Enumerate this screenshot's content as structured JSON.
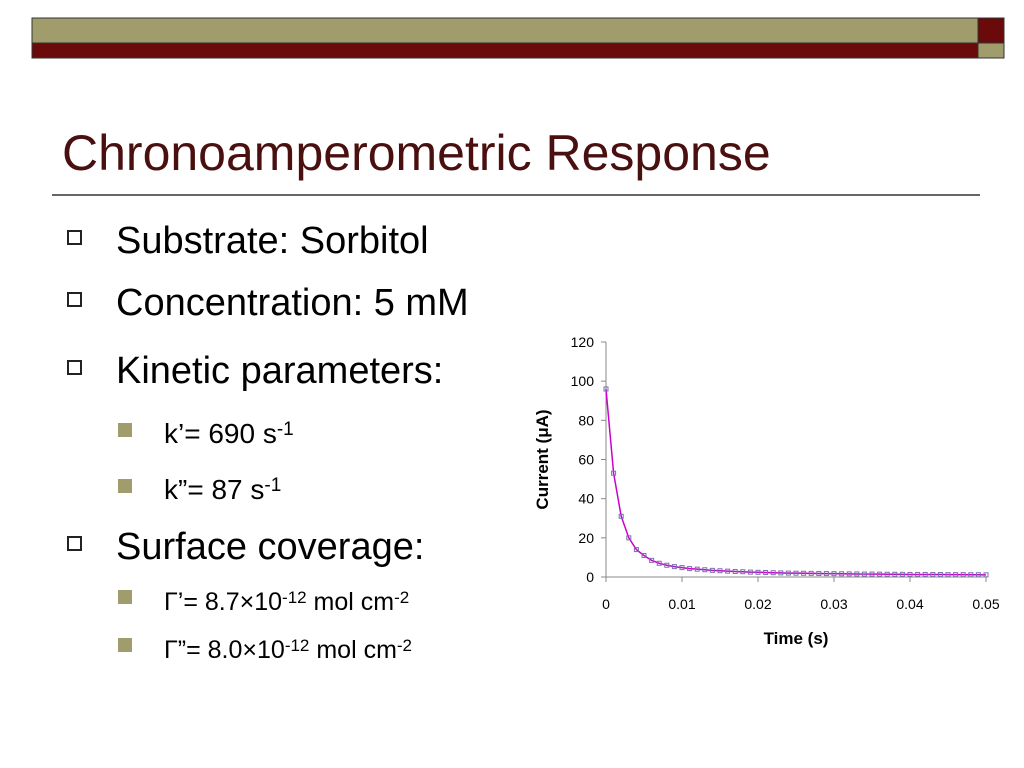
{
  "title": "Chronoamperometric Response",
  "bullets": [
    {
      "text": "Substrate: Sorbitol"
    },
    {
      "text": "Concentration: 5 mM"
    },
    {
      "text": "Kinetic parameters:",
      "sub": [
        [
          {
            "text": "k’= 690 s"
          },
          {
            "text": "-1",
            "sup": true
          }
        ],
        [
          {
            "text": "k”= 87 s"
          },
          {
            "text": "-1",
            "sup": true
          }
        ]
      ]
    },
    {
      "text": "Surface coverage:",
      "sub": [
        [
          {
            "text": "Γ’= 8.7×10"
          },
          {
            "text": "-12",
            "sup": true
          },
          {
            "text": " mol cm"
          },
          {
            "text": "-2",
            "sup": true
          }
        ],
        [
          {
            "text": "Γ”= 8.0×10"
          },
          {
            "text": "-12",
            "sup": true
          },
          {
            "text": " mol cm"
          },
          {
            "text": "-2",
            "sup": true
          }
        ]
      ]
    }
  ],
  "chart_data": {
    "type": "line",
    "x_label": "Time (s)",
    "y_label": "Current (μA)",
    "x": [
      0,
      0.001,
      0.002,
      0.003,
      0.004,
      0.005,
      0.006,
      0.007,
      0.008,
      0.009,
      0.01,
      0.011,
      0.012,
      0.013,
      0.014,
      0.015,
      0.016,
      0.017,
      0.018,
      0.019,
      0.02,
      0.021,
      0.022,
      0.023,
      0.024,
      0.025,
      0.026,
      0.027,
      0.028,
      0.029,
      0.03,
      0.031,
      0.032,
      0.033,
      0.034,
      0.035,
      0.036,
      0.037,
      0.038,
      0.039,
      0.04,
      0.041,
      0.042,
      0.043,
      0.044,
      0.045,
      0.046,
      0.047,
      0.048,
      0.049,
      0.05
    ],
    "values": [
      96,
      53,
      31,
      20,
      14,
      11,
      8.5,
      7,
      6,
      5.3,
      4.8,
      4.3,
      4,
      3.7,
      3.4,
      3.2,
      3,
      2.8,
      2.7,
      2.5,
      2.4,
      2.3,
      2.2,
      2.1,
      2,
      1.95,
      1.9,
      1.85,
      1.8,
      1.75,
      1.7,
      1.65,
      1.6,
      1.55,
      1.5,
      1.5,
      1.45,
      1.4,
      1.4,
      1.35,
      1.3,
      1.3,
      1.3,
      1.25,
      1.25,
      1.2,
      1.2,
      1.2,
      1.15,
      1.15,
      1.1
    ],
    "line_color": "#cc00cc",
    "marker_color": "#7a6fb0",
    "xlim": [
      0,
      0.05
    ],
    "xticks": [
      0,
      0.01,
      0.02,
      0.03,
      0.04,
      0.05
    ],
    "ylim": [
      0,
      120
    ],
    "yticks": [
      0,
      20,
      40,
      60,
      80,
      100,
      120
    ]
  }
}
